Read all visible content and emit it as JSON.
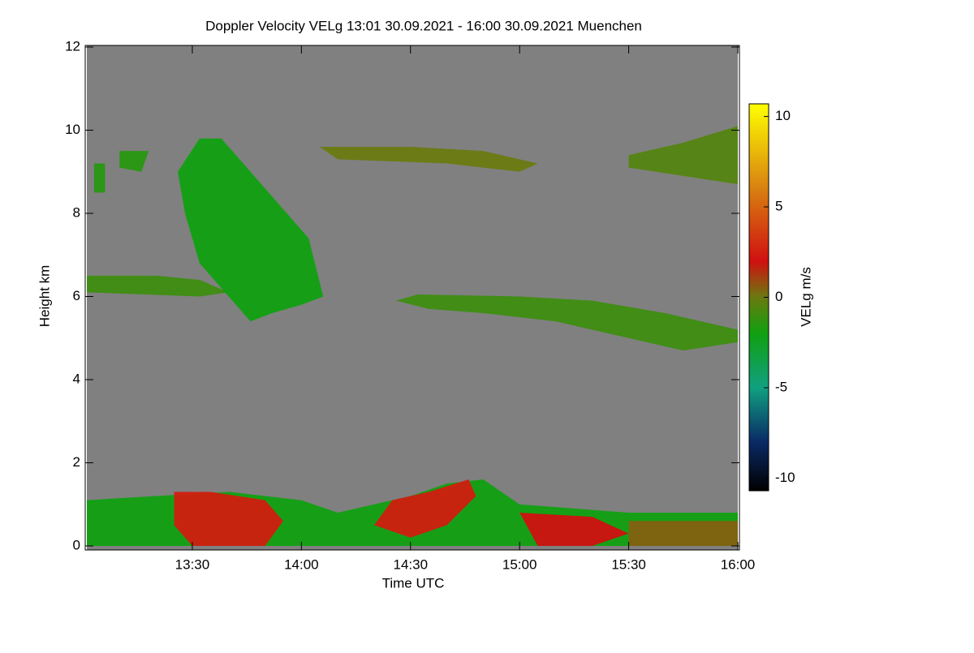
{
  "chart_data": {
    "type": "heatmap",
    "title": "Doppler Velocity VELg   13:01 30.09.2021 - 16:00 30.09.2021 Muenchen",
    "x_label": "Time UTC",
    "y_label": "Height km",
    "colorbar_label": "VELg m/s",
    "background": "#808080",
    "xlim": [
      781,
      960
    ],
    "xticks": [
      {
        "value": 810,
        "label": "13:30"
      },
      {
        "value": 840,
        "label": "14:00"
      },
      {
        "value": 870,
        "label": "14:30"
      },
      {
        "value": 900,
        "label": "15:00"
      },
      {
        "value": 930,
        "label": "15:30"
      },
      {
        "value": 960,
        "label": "16:00"
      }
    ],
    "ylim": [
      0,
      12
    ],
    "yticks": [
      0,
      2,
      4,
      6,
      8,
      10,
      12
    ],
    "zlim": [
      -10.7,
      10.7
    ],
    "zticks": [
      -10,
      -5,
      0,
      5,
      10
    ],
    "colormap": [
      {
        "value": -10.7,
        "color": "#000000"
      },
      {
        "value": -8,
        "color": "#0a2a66"
      },
      {
        "value": -5,
        "color": "#10a080"
      },
      {
        "value": -2,
        "color": "#10a010"
      },
      {
        "value": 0,
        "color": "#6a7a10"
      },
      {
        "value": 2,
        "color": "#d01010"
      },
      {
        "value": 6,
        "color": "#d88010"
      },
      {
        "value": 10.7,
        "color": "#ffff00"
      }
    ],
    "features": [
      {
        "x": [
          781,
          800,
          812,
          820,
          812,
          781
        ],
        "y": [
          6.5,
          6.5,
          6.4,
          6.1,
          6.0,
          6.1
        ],
        "value": -1
      },
      {
        "x": [
          812,
          818,
          826,
          836,
          842,
          846,
          840,
          832,
          826,
          820,
          812,
          808,
          806
        ],
        "y": [
          9.8,
          9.8,
          9.0,
          8.0,
          7.4,
          6.0,
          5.8,
          5.6,
          5.4,
          6.0,
          6.8,
          8.0,
          9.0
        ],
        "value": -2
      },
      {
        "x": [
          790,
          798,
          796,
          790
        ],
        "y": [
          9.5,
          9.5,
          9.0,
          9.1
        ],
        "value": -1.5
      },
      {
        "x": [
          783,
          786,
          786,
          783
        ],
        "y": [
          9.2,
          9.2,
          8.5,
          8.5
        ],
        "value": -1.5
      },
      {
        "x": [
          866,
          872,
          900,
          920,
          940,
          960,
          960,
          945,
          930,
          910,
          890,
          875
        ],
        "y": [
          5.9,
          6.05,
          6.0,
          5.9,
          5.6,
          5.2,
          4.9,
          4.7,
          5.0,
          5.4,
          5.6,
          5.7
        ],
        "value": -1
      },
      {
        "x": [
          845,
          870,
          890,
          905,
          900,
          880,
          850
        ],
        "y": [
          9.6,
          9.6,
          9.5,
          9.2,
          9.0,
          9.2,
          9.3
        ],
        "value": 0
      },
      {
        "x": [
          930,
          945,
          960,
          960,
          945,
          930
        ],
        "y": [
          9.4,
          9.7,
          10.1,
          8.7,
          8.9,
          9.1
        ],
        "value": -0.5
      },
      {
        "x": [
          781,
          800,
          820,
          840,
          850,
          870,
          880,
          890,
          900,
          930,
          960,
          960,
          781
        ],
        "y": [
          1.1,
          1.2,
          1.3,
          1.1,
          0.8,
          1.2,
          1.5,
          1.6,
          1.0,
          0.8,
          0.8,
          0,
          0
        ],
        "value": -2
      },
      {
        "x": [
          805,
          815,
          830,
          835,
          830,
          810,
          805
        ],
        "y": [
          1.3,
          1.3,
          1.1,
          0.6,
          0,
          0,
          0.5
        ],
        "value": 2.5
      },
      {
        "x": [
          860,
          865,
          875,
          886,
          888,
          880,
          870
        ],
        "y": [
          0.5,
          1.1,
          1.3,
          1.6,
          1.2,
          0.5,
          0.2
        ],
        "value": 2.5
      },
      {
        "x": [
          900,
          920,
          930,
          920,
          905
        ],
        "y": [
          0.8,
          0.7,
          0.3,
          0,
          0
        ],
        "value": 2
      },
      {
        "x": [
          930,
          960,
          960,
          930
        ],
        "y": [
          0.6,
          0.6,
          0,
          0
        ],
        "value": 0.5
      }
    ]
  }
}
